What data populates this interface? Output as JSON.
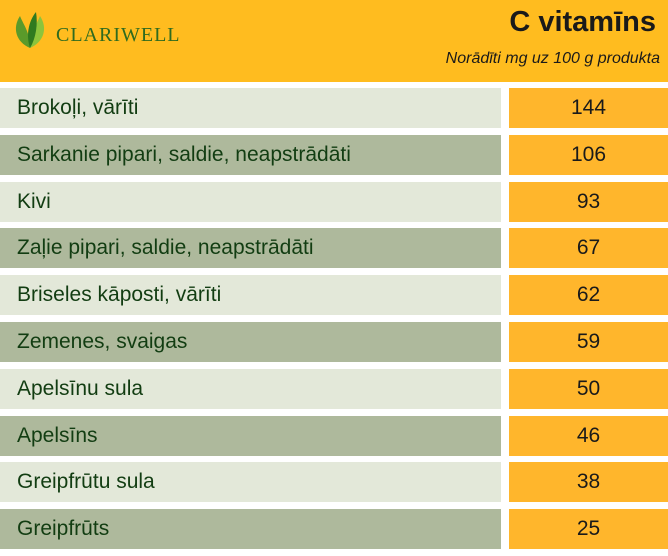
{
  "header": {
    "logo_text": "CLARIWELL",
    "title": "C vitamīns",
    "subtitle": "Norādīti mg uz 100 g produkta"
  },
  "colors": {
    "header_bg": "#FFBC1F",
    "value_bg": "#FFB62C",
    "row_light": "#E3E8D9",
    "row_dark": "#AEB99C",
    "text_green": "#123d12"
  },
  "rows": [
    {
      "name": "Brokoļi, vārīti",
      "value": "144"
    },
    {
      "name": "Sarkanie pipari, saldie, neapstrādāti",
      "value": "106"
    },
    {
      "name": "Kivi",
      "value": "93"
    },
    {
      "name": "Zaļie pipari, saldie, neapstrādāti",
      "value": "67"
    },
    {
      "name": "Briseles kāposti, vārīti",
      "value": "62"
    },
    {
      "name": "Zemenes, svaigas",
      "value": "59"
    },
    {
      "name": "Apelsīnu sula",
      "value": "50"
    },
    {
      "name": "Apelsīns",
      "value": "46"
    },
    {
      "name": "Greipfrūtu sula",
      "value": "38"
    },
    {
      "name": "Greipfrūts",
      "value": "25"
    }
  ]
}
